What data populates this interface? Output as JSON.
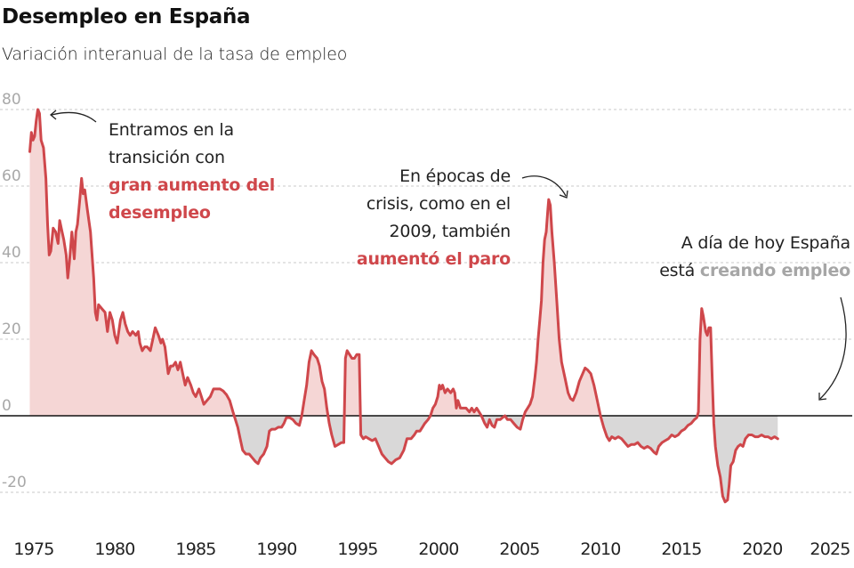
{
  "header": {
    "title": "Desempleo en España",
    "subtitle": "Variación interanual de la tasa de empleo"
  },
  "colors": {
    "line": "#cf474b",
    "positive_fill": "#f5d6d5",
    "negative_fill": "#d9d8d8",
    "zero_line": "#111111",
    "grid": "#c8c8c8",
    "highlight_red": "#cf474b",
    "highlight_grey": "#a6a6a6"
  },
  "annotations": [
    {
      "lines": [
        "Entramos en la",
        "transición con"
      ],
      "highlight": [
        "gran aumento del",
        "desempleo"
      ],
      "highlight_style": "red"
    },
    {
      "lines": [
        "En épocas de",
        "crisis, como en el",
        "2009, también"
      ],
      "highlight": [
        "aumentó el paro"
      ],
      "highlight_style": "red"
    },
    {
      "lines": [
        "A día de hoy España"
      ],
      "prefix": "está ",
      "highlight": [
        "creando empleo"
      ],
      "highlight_style": "grey"
    }
  ],
  "chart_data": {
    "type": "area",
    "title": "Desempleo en España",
    "subtitle": "Variación interanual de la tasa de empleo",
    "xlabel": "",
    "ylabel": "",
    "xlim": [
      1974.7,
      2025.5
    ],
    "ylim": [
      -25,
      82
    ],
    "grid": true,
    "yticks": [
      80,
      60,
      40,
      20,
      0,
      -20
    ],
    "ytick_labels": [
      "80",
      "60",
      "40",
      "20",
      "0",
      "-20"
    ],
    "xticks": [
      1975,
      1980,
      1985,
      1990,
      1995,
      2000,
      2005,
      2010,
      2015,
      2020,
      2025
    ],
    "xtick_labels": [
      "1975",
      "1980",
      "1985",
      "1990",
      "1995",
      "2000",
      "2005",
      "2010",
      "2015",
      "2020",
      "2025"
    ],
    "series": [
      {
        "name": "Variación interanual",
        "points": [
          [
            1974.75,
            69
          ],
          [
            1974.85,
            74
          ],
          [
            1974.95,
            72
          ],
          [
            1975.05,
            73
          ],
          [
            1975.15,
            77
          ],
          [
            1975.25,
            80
          ],
          [
            1975.35,
            79
          ],
          [
            1975.45,
            72
          ],
          [
            1975.6,
            70
          ],
          [
            1975.75,
            62
          ],
          [
            1975.85,
            50
          ],
          [
            1975.95,
            42
          ],
          [
            1976.05,
            43
          ],
          [
            1976.2,
            49
          ],
          [
            1976.35,
            48
          ],
          [
            1976.5,
            45
          ],
          [
            1976.6,
            51
          ],
          [
            1976.75,
            48
          ],
          [
            1976.85,
            46
          ],
          [
            1977.0,
            42
          ],
          [
            1977.1,
            36
          ],
          [
            1977.2,
            40
          ],
          [
            1977.35,
            48
          ],
          [
            1977.5,
            41
          ],
          [
            1977.6,
            48
          ],
          [
            1977.7,
            50
          ],
          [
            1977.85,
            57
          ],
          [
            1977.95,
            62
          ],
          [
            1978.05,
            58
          ],
          [
            1978.15,
            59
          ],
          [
            1978.3,
            54
          ],
          [
            1978.5,
            48
          ],
          [
            1978.7,
            36
          ],
          [
            1978.8,
            27
          ],
          [
            1978.9,
            25
          ],
          [
            1979.0,
            29
          ],
          [
            1979.2,
            28
          ],
          [
            1979.4,
            27
          ],
          [
            1979.55,
            22
          ],
          [
            1979.7,
            27
          ],
          [
            1979.85,
            25
          ],
          [
            1980.0,
            21
          ],
          [
            1980.15,
            19
          ],
          [
            1980.35,
            25
          ],
          [
            1980.5,
            27
          ],
          [
            1980.65,
            24
          ],
          [
            1980.8,
            22
          ],
          [
            1980.95,
            21
          ],
          [
            1981.1,
            22
          ],
          [
            1981.3,
            21
          ],
          [
            1981.45,
            22
          ],
          [
            1981.55,
            19
          ],
          [
            1981.7,
            17
          ],
          [
            1981.85,
            18
          ],
          [
            1982.0,
            18
          ],
          [
            1982.2,
            17
          ],
          [
            1982.35,
            20
          ],
          [
            1982.5,
            23
          ],
          [
            1982.7,
            21
          ],
          [
            1982.85,
            19
          ],
          [
            1982.95,
            20
          ],
          [
            1983.1,
            18
          ],
          [
            1983.3,
            11
          ],
          [
            1983.45,
            13
          ],
          [
            1983.6,
            13
          ],
          [
            1983.75,
            14
          ],
          [
            1983.9,
            12
          ],
          [
            1984.05,
            14
          ],
          [
            1984.2,
            11
          ],
          [
            1984.35,
            8
          ],
          [
            1984.5,
            10
          ],
          [
            1984.7,
            8
          ],
          [
            1984.85,
            6
          ],
          [
            1985.0,
            5
          ],
          [
            1985.2,
            7
          ],
          [
            1985.35,
            5
          ],
          [
            1985.5,
            3
          ],
          [
            1985.7,
            4
          ],
          [
            1985.9,
            5
          ],
          [
            1986.1,
            7
          ],
          [
            1986.3,
            7
          ],
          [
            1986.5,
            7
          ],
          [
            1986.7,
            6.5
          ],
          [
            1986.9,
            5.5
          ],
          [
            1987.1,
            4
          ],
          [
            1987.3,
            1
          ],
          [
            1987.45,
            -1
          ],
          [
            1987.6,
            -3
          ],
          [
            1987.75,
            -6
          ],
          [
            1987.9,
            -9
          ],
          [
            1988.1,
            -10
          ],
          [
            1988.3,
            -10
          ],
          [
            1988.5,
            -11
          ],
          [
            1988.7,
            -12
          ],
          [
            1988.85,
            -12.5
          ],
          [
            1989.0,
            -11
          ],
          [
            1989.2,
            -10
          ],
          [
            1989.4,
            -8
          ],
          [
            1989.55,
            -4
          ],
          [
            1989.7,
            -3.5
          ],
          [
            1989.9,
            -3.5
          ],
          [
            1990.1,
            -3
          ],
          [
            1990.3,
            -3
          ],
          [
            1990.45,
            -2
          ],
          [
            1990.6,
            -0.5
          ],
          [
            1990.8,
            -0.5
          ],
          [
            1991.0,
            -1
          ],
          [
            1991.2,
            -2
          ],
          [
            1991.4,
            -2.5
          ],
          [
            1991.55,
            0
          ],
          [
            1991.7,
            4
          ],
          [
            1991.85,
            8
          ],
          [
            1992.0,
            14
          ],
          [
            1992.15,
            17
          ],
          [
            1992.3,
            16
          ],
          [
            1992.5,
            15
          ],
          [
            1992.65,
            13
          ],
          [
            1992.8,
            9
          ],
          [
            1992.95,
            7
          ],
          [
            1993.1,
            2
          ],
          [
            1993.25,
            -2
          ],
          [
            1993.4,
            -5
          ],
          [
            1993.6,
            -8
          ],
          [
            1993.8,
            -7.5
          ],
          [
            1994.0,
            -7
          ],
          [
            1994.15,
            -7
          ],
          [
            1994.25,
            15
          ],
          [
            1994.35,
            17
          ],
          [
            1994.5,
            16
          ],
          [
            1994.65,
            15
          ],
          [
            1994.8,
            15
          ],
          [
            1994.95,
            16
          ],
          [
            1995.1,
            16
          ],
          [
            1995.2,
            -5
          ],
          [
            1995.35,
            -6
          ],
          [
            1995.5,
            -5.5
          ],
          [
            1995.7,
            -6
          ],
          [
            1995.9,
            -6.5
          ],
          [
            1996.1,
            -6
          ],
          [
            1996.3,
            -8
          ],
          [
            1996.5,
            -10
          ],
          [
            1996.7,
            -11
          ],
          [
            1996.9,
            -12
          ],
          [
            1997.1,
            -12.5
          ],
          [
            1997.35,
            -11.5
          ],
          [
            1997.6,
            -11
          ],
          [
            1997.85,
            -9
          ],
          [
            1998.05,
            -6
          ],
          [
            1998.3,
            -6
          ],
          [
            1998.5,
            -5
          ],
          [
            1998.65,
            -4
          ],
          [
            1998.85,
            -4
          ],
          [
            1999.0,
            -3
          ],
          [
            1999.15,
            -2
          ],
          [
            1999.35,
            -1
          ],
          [
            1999.5,
            0
          ],
          [
            1999.65,
            2
          ],
          [
            1999.8,
            3
          ],
          [
            1999.95,
            5
          ],
          [
            2000.05,
            8
          ],
          [
            2000.15,
            7
          ],
          [
            2000.25,
            8
          ],
          [
            2000.4,
            6
          ],
          [
            2000.55,
            7
          ],
          [
            2000.75,
            6
          ],
          [
            2000.9,
            7
          ],
          [
            2001.0,
            6
          ],
          [
            2001.1,
            2
          ],
          [
            2001.2,
            4
          ],
          [
            2001.35,
            2
          ],
          [
            2001.5,
            2
          ],
          [
            2001.7,
            2
          ],
          [
            2001.9,
            1
          ],
          [
            2002.05,
            2
          ],
          [
            2002.2,
            1
          ],
          [
            2002.35,
            2
          ],
          [
            2002.5,
            1
          ],
          [
            2002.65,
            0
          ],
          [
            2002.85,
            -2
          ],
          [
            2003.0,
            -3
          ],
          [
            2003.15,
            -1
          ],
          [
            2003.3,
            -2.5
          ],
          [
            2003.45,
            -3
          ],
          [
            2003.6,
            -1
          ],
          [
            2003.8,
            -1
          ],
          [
            2003.95,
            -0.5
          ],
          [
            2004.1,
            0
          ],
          [
            2004.25,
            -1
          ],
          [
            2004.45,
            -1
          ],
          [
            2004.65,
            -2
          ],
          [
            2004.85,
            -3
          ],
          [
            2005.05,
            -3.5
          ],
          [
            2005.2,
            -1
          ],
          [
            2005.35,
            1
          ],
          [
            2005.5,
            2
          ],
          [
            2005.65,
            3
          ],
          [
            2005.8,
            5
          ],
          [
            2005.95,
            10
          ],
          [
            2006.05,
            14
          ],
          [
            2006.15,
            20
          ],
          [
            2006.25,
            25
          ],
          [
            2006.35,
            30
          ],
          [
            2006.45,
            40
          ],
          [
            2006.55,
            46
          ],
          [
            2006.65,
            48
          ],
          [
            2006.75,
            54
          ],
          [
            2006.8,
            56.5
          ],
          [
            2006.9,
            55
          ],
          [
            2007.0,
            48
          ],
          [
            2007.15,
            40
          ],
          [
            2007.3,
            30
          ],
          [
            2007.45,
            20
          ],
          [
            2007.6,
            14
          ],
          [
            2007.8,
            10
          ],
          [
            2008.0,
            6
          ],
          [
            2008.15,
            4.5
          ],
          [
            2008.3,
            4
          ],
          [
            2008.5,
            6
          ],
          [
            2008.7,
            9
          ],
          [
            2008.9,
            11
          ],
          [
            2009.05,
            12.5
          ],
          [
            2009.2,
            12
          ],
          [
            2009.4,
            11
          ],
          [
            2009.6,
            8
          ],
          [
            2009.8,
            4
          ],
          [
            2010.0,
            0
          ],
          [
            2010.2,
            -3
          ],
          [
            2010.4,
            -5.5
          ],
          [
            2010.55,
            -6.5
          ],
          [
            2010.7,
            -5.5
          ],
          [
            2010.9,
            -6
          ],
          [
            2011.1,
            -5.5
          ],
          [
            2011.3,
            -6
          ],
          [
            2011.5,
            -7
          ],
          [
            2011.7,
            -8
          ],
          [
            2011.9,
            -7.5
          ],
          [
            2012.1,
            -7.5
          ],
          [
            2012.3,
            -7
          ],
          [
            2012.5,
            -8
          ],
          [
            2012.7,
            -8.5
          ],
          [
            2012.9,
            -8
          ],
          [
            2013.1,
            -8.5
          ],
          [
            2013.3,
            -9.5
          ],
          [
            2013.45,
            -10
          ],
          [
            2013.6,
            -8
          ],
          [
            2013.8,
            -7
          ],
          [
            2014.0,
            -6.5
          ],
          [
            2014.2,
            -6
          ],
          [
            2014.4,
            -5
          ],
          [
            2014.6,
            -5.5
          ],
          [
            2014.8,
            -5
          ],
          [
            2015.0,
            -4
          ],
          [
            2015.2,
            -3.5
          ],
          [
            2015.4,
            -2.5
          ],
          [
            2015.6,
            -2
          ],
          [
            2015.8,
            -1
          ],
          [
            2015.95,
            -0.5
          ],
          [
            2016.05,
            1
          ],
          [
            2016.15,
            20
          ],
          [
            2016.25,
            28
          ],
          [
            2016.35,
            26
          ],
          [
            2016.5,
            22
          ],
          [
            2016.6,
            21
          ],
          [
            2016.7,
            23
          ],
          [
            2016.8,
            23
          ],
          [
            2016.9,
            10
          ],
          [
            2017.0,
            -2
          ],
          [
            2017.1,
            -8
          ],
          [
            2017.25,
            -13
          ],
          [
            2017.4,
            -16
          ],
          [
            2017.55,
            -21
          ],
          [
            2017.7,
            -22.5
          ],
          [
            2017.85,
            -22
          ],
          [
            2017.95,
            -18
          ],
          [
            2018.05,
            -13
          ],
          [
            2018.2,
            -12
          ],
          [
            2018.35,
            -9
          ],
          [
            2018.5,
            -8
          ],
          [
            2018.65,
            -7.5
          ],
          [
            2018.8,
            -8
          ],
          [
            2018.95,
            -6
          ],
          [
            2019.15,
            -5
          ],
          [
            2019.35,
            -5
          ],
          [
            2019.55,
            -5.5
          ],
          [
            2019.75,
            -5.5
          ],
          [
            2019.95,
            -5
          ],
          [
            2020.15,
            -5.5
          ],
          [
            2020.35,
            -5.5
          ],
          [
            2020.55,
            -6
          ],
          [
            2020.75,
            -5.5
          ],
          [
            2020.95,
            -6
          ]
        ]
      }
    ]
  }
}
